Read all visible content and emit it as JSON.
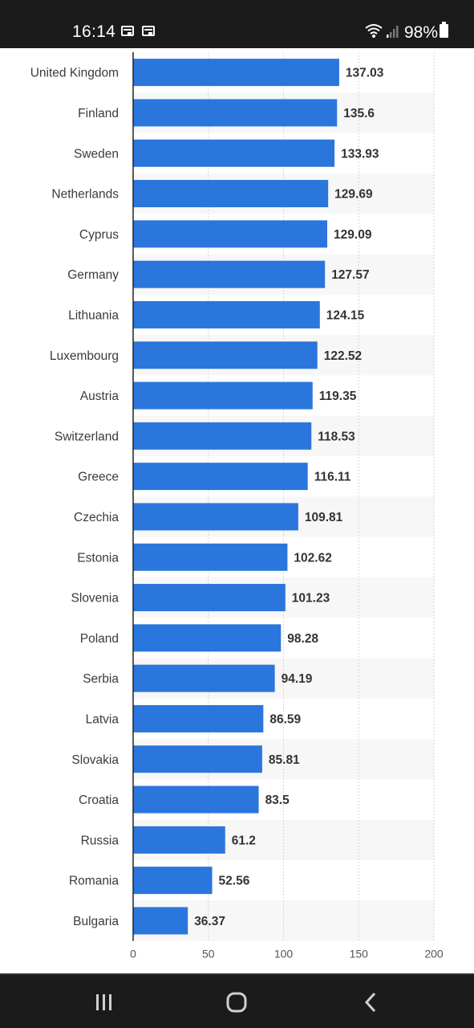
{
  "status_bar": {
    "time": "16:14",
    "battery_percent": "98%",
    "icons": [
      "notification-card-icon",
      "notification-card-icon",
      "wifi-icon",
      "signal-icon",
      "battery-icon"
    ]
  },
  "nav_bar": {
    "buttons": [
      "recent-apps-icon",
      "home-icon",
      "back-icon"
    ]
  },
  "colors": {
    "bar": "#2a76dd",
    "stripe": "#f7f7f7",
    "grid": "#d6d6d6"
  },
  "chart_data": {
    "type": "bar",
    "orientation": "horizontal",
    "categories": [
      "United Kingdom",
      "Finland",
      "Sweden",
      "Netherlands",
      "Cyprus",
      "Germany",
      "Lithuania",
      "Luxembourg",
      "Austria",
      "Switzerland",
      "Greece",
      "Czechia",
      "Estonia",
      "Slovenia",
      "Poland",
      "Serbia",
      "Latvia",
      "Slovakia",
      "Croatia",
      "Russia",
      "Romania",
      "Bulgaria"
    ],
    "values": [
      137.03,
      135.6,
      133.93,
      129.69,
      129.09,
      127.57,
      124.15,
      122.52,
      119.35,
      118.53,
      116.11,
      109.81,
      102.62,
      101.23,
      98.28,
      94.19,
      86.59,
      85.81,
      83.5,
      61.2,
      52.56,
      36.37
    ],
    "value_labels": [
      "137.03",
      "135.6",
      "133.93",
      "129.69",
      "129.09",
      "127.57",
      "124.15",
      "122.52",
      "119.35",
      "118.53",
      "116.11",
      "109.81",
      "102.62",
      "101.23",
      "98.28",
      "94.19",
      "86.59",
      "85.81",
      "83.5",
      "61.2",
      "52.56",
      "36.37"
    ],
    "xlim": [
      0,
      200
    ],
    "xticks": [
      0,
      50,
      100,
      150,
      200
    ],
    "xtick_labels": [
      "0",
      "50",
      "100",
      "150",
      "200"
    ],
    "xlabel": "",
    "grid": true
  }
}
